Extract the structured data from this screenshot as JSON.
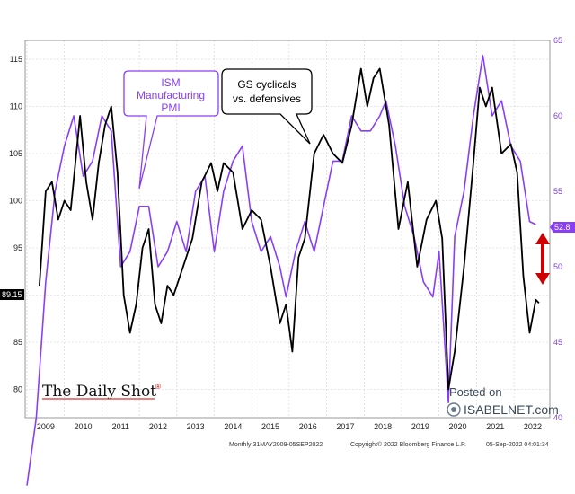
{
  "chart_data": {
    "type": "line",
    "x_range": [
      "2009-01",
      "2022-09"
    ],
    "x_ticks": [
      "2009",
      "2010",
      "2011",
      "2012",
      "2013",
      "2014",
      "2015",
      "2016",
      "2017",
      "2018",
      "2019",
      "2020",
      "2021",
      "2022"
    ],
    "y_left": {
      "ticks": [
        80,
        85,
        90,
        95,
        100,
        105,
        110,
        115
      ],
      "range": [
        77,
        117
      ]
    },
    "y_right": {
      "ticks": [
        40,
        45,
        50,
        55,
        60,
        65
      ],
      "range": [
        40,
        65
      ]
    },
    "grid": true,
    "series": [
      {
        "name": "GS cyclicals vs. defensives",
        "axis": "left",
        "color": "#000000",
        "last_label": "89.15",
        "points": [
          [
            "2009-05",
            91
          ],
          [
            "2009-07",
            101
          ],
          [
            "2009-09",
            102
          ],
          [
            "2009-11",
            98
          ],
          [
            "2010-01",
            100
          ],
          [
            "2010-03",
            99
          ],
          [
            "2010-06",
            109
          ],
          [
            "2010-08",
            102
          ],
          [
            "2010-10",
            98
          ],
          [
            "2010-12",
            104
          ],
          [
            "2011-02",
            108
          ],
          [
            "2011-04",
            110
          ],
          [
            "2011-06",
            103
          ],
          [
            "2011-08",
            90
          ],
          [
            "2011-10",
            86
          ],
          [
            "2011-12",
            89
          ],
          [
            "2012-02",
            95
          ],
          [
            "2012-04",
            97
          ],
          [
            "2012-06",
            89
          ],
          [
            "2012-08",
            87
          ],
          [
            "2012-10",
            91
          ],
          [
            "2012-12",
            90
          ],
          [
            "2013-03",
            93
          ],
          [
            "2013-06",
            96
          ],
          [
            "2013-09",
            102
          ],
          [
            "2013-12",
            104
          ],
          [
            "2014-02",
            101
          ],
          [
            "2014-04",
            104
          ],
          [
            "2014-07",
            103
          ],
          [
            "2014-10",
            97
          ],
          [
            "2015-01",
            99
          ],
          [
            "2015-04",
            98
          ],
          [
            "2015-07",
            93
          ],
          [
            "2015-10",
            87
          ],
          [
            "2015-12",
            89
          ],
          [
            "2016-02",
            84
          ],
          [
            "2016-04",
            94
          ],
          [
            "2016-06",
            96
          ],
          [
            "2016-09",
            105
          ],
          [
            "2016-12",
            107
          ],
          [
            "2017-03",
            105
          ],
          [
            "2017-06",
            104
          ],
          [
            "2017-09",
            108
          ],
          [
            "2017-12",
            114
          ],
          [
            "2018-02",
            110
          ],
          [
            "2018-04",
            113
          ],
          [
            "2018-06",
            114
          ],
          [
            "2018-09",
            108
          ],
          [
            "2018-12",
            97
          ],
          [
            "2019-03",
            102
          ],
          [
            "2019-06",
            93
          ],
          [
            "2019-09",
            98
          ],
          [
            "2019-12",
            100
          ],
          [
            "2020-02",
            96
          ],
          [
            "2020-04",
            80
          ],
          [
            "2020-06",
            84
          ],
          [
            "2020-09",
            93
          ],
          [
            "2020-12",
            104
          ],
          [
            "2021-02",
            112
          ],
          [
            "2021-04",
            110
          ],
          [
            "2021-06",
            112
          ],
          [
            "2021-09",
            105
          ],
          [
            "2021-12",
            106
          ],
          [
            "2022-02",
            103
          ],
          [
            "2022-04",
            92
          ],
          [
            "2022-06",
            86
          ],
          [
            "2022-08",
            89.5
          ],
          [
            "2022-09",
            89.15
          ]
        ]
      },
      {
        "name": "ISM Manufacturing PMI",
        "axis": "right",
        "color": "#8a3ff5",
        "last_label": "52.8",
        "points": [
          [
            "2009-01",
            35.5
          ],
          [
            "2009-04",
            40
          ],
          [
            "2009-07",
            49
          ],
          [
            "2009-10",
            55
          ],
          [
            "2010-01",
            58
          ],
          [
            "2010-04",
            60
          ],
          [
            "2010-07",
            56
          ],
          [
            "2010-10",
            57
          ],
          [
            "2011-01",
            60
          ],
          [
            "2011-04",
            59
          ],
          [
            "2011-07",
            50
          ],
          [
            "2011-10",
            51
          ],
          [
            "2012-01",
            54
          ],
          [
            "2012-04",
            54
          ],
          [
            "2012-07",
            50
          ],
          [
            "2012-10",
            51
          ],
          [
            "2013-01",
            53
          ],
          [
            "2013-04",
            51
          ],
          [
            "2013-07",
            55
          ],
          [
            "2013-10",
            56
          ],
          [
            "2014-01",
            51
          ],
          [
            "2014-04",
            55
          ],
          [
            "2014-07",
            57
          ],
          [
            "2014-10",
            58
          ],
          [
            "2015-01",
            53
          ],
          [
            "2015-04",
            51
          ],
          [
            "2015-07",
            52
          ],
          [
            "2015-10",
            50
          ],
          [
            "2015-12",
            48
          ],
          [
            "2016-03",
            51
          ],
          [
            "2016-06",
            53
          ],
          [
            "2016-09",
            51
          ],
          [
            "2016-12",
            54
          ],
          [
            "2017-03",
            57
          ],
          [
            "2017-06",
            57
          ],
          [
            "2017-09",
            60
          ],
          [
            "2017-12",
            59
          ],
          [
            "2018-03",
            59
          ],
          [
            "2018-06",
            60
          ],
          [
            "2018-08",
            61
          ],
          [
            "2018-11",
            58
          ],
          [
            "2019-02",
            54
          ],
          [
            "2019-05",
            52
          ],
          [
            "2019-08",
            49
          ],
          [
            "2019-11",
            48
          ],
          [
            "2020-01",
            51
          ],
          [
            "2020-04",
            41
          ],
          [
            "2020-06",
            52
          ],
          [
            "2020-09",
            55
          ],
          [
            "2020-12",
            60
          ],
          [
            "2021-03",
            64
          ],
          [
            "2021-06",
            60
          ],
          [
            "2021-09",
            61
          ],
          [
            "2021-12",
            58
          ],
          [
            "2022-03",
            57
          ],
          [
            "2022-06",
            53
          ],
          [
            "2022-08",
            52.8
          ]
        ]
      }
    ]
  },
  "annotations": {
    "ism_label": [
      "ISM",
      "Manufacturing",
      "PMI"
    ],
    "gs_label": [
      "GS cyclicals",
      "vs. defensives"
    ],
    "left_last_value": "89.15",
    "right_last_value": "52.8"
  },
  "colors": {
    "black_line": "#000000",
    "purple_line": "#8a3ff5",
    "arrow": "#d10000",
    "grid": "#cfcfcf"
  },
  "footer": {
    "left": "Monthly 31MAY2009-05SEP2022",
    "center": "Copyright© 2022 Bloomberg Finance L.P.",
    "right": "05-Sep-2022 04:01:34"
  },
  "watermark": {
    "brand": "The Daily Shot",
    "brand_mark": "®",
    "posted_on": "Posted on",
    "site": "ISABELNET.com"
  }
}
